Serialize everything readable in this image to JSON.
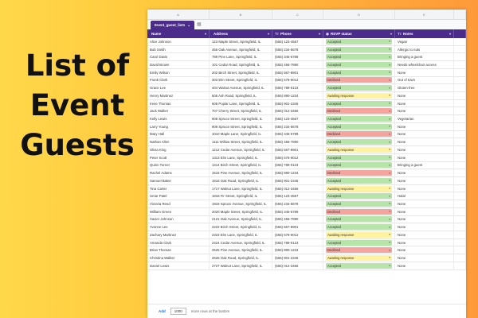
{
  "headline": {
    "line1": "List of",
    "line2": "Event",
    "line3": "Guests"
  },
  "column_letters": [
    "A",
    "B",
    "C",
    "D",
    "E",
    ""
  ],
  "sheet_tab": {
    "label": "Event_guest_list1",
    "menu_glyph": "⌄",
    "icon_glyph": "▦"
  },
  "headers": [
    {
      "icon": "",
      "label": "Name"
    },
    {
      "icon": "",
      "label": "Address"
    },
    {
      "icon": "Tт",
      "label": "Phone"
    },
    {
      "icon": "◉",
      "label": "RSVP status"
    },
    {
      "icon": "Tт",
      "label": "Notes"
    },
    {
      "icon": "",
      "label": ""
    }
  ],
  "status_colors": {
    "Accepted": "#b7e4a8",
    "Declined": "#f5a49e",
    "Awaiting response": "#fff2a0"
  },
  "rows": [
    [
      "Alice Johnson",
      "123 Maple Street, Springfield, IL",
      "(555) 123-4567",
      "Accepted",
      "Vegan"
    ],
    [
      "Bob Smith",
      "456 Oak Avenue, Springfield, IL",
      "(555) 234-5678",
      "Accepted",
      "Allergic to nuts"
    ],
    [
      "Carol Davis",
      "789 Pine Lane, Springfield, IL",
      "(555) 345-6789",
      "Accepted",
      "Bringing a guest"
    ],
    [
      "David Brown",
      "101 Cedar Road, Springfield, IL",
      "(555) 456-7890",
      "Accepted",
      "Needs wheelchair access"
    ],
    [
      "Emily Wilson",
      "202 Birch Street, Springfield, IL",
      "(555) 567-8901",
      "Accepted",
      "None"
    ],
    [
      "Frank Clark",
      "303 Elm Street, Springfield, IL",
      "(555) 678-9012",
      "Declined",
      "Out of town"
    ],
    [
      "Grace Lee",
      "404 Walnut Avenue, Springfield, IL",
      "(555) 789-0123",
      "Accepted",
      "Gluten-free"
    ],
    [
      "Henry Martinez",
      "505 Ash Road, Springfield, IL",
      "(555) 890-1234",
      "Awaiting response",
      "None"
    ],
    [
      "Irene Thomas",
      "606 Poplar Lane, Springfield, IL",
      "(555) 901-2345",
      "Accepted",
      "None"
    ],
    [
      "Jack Walker",
      "707 Cherry Street, Springfield, IL",
      "(555) 012-3456",
      "Declined",
      "None"
    ],
    [
      "Kelly Lewis",
      "808 Spruce Street, Springfield, IL",
      "(555) 123-4567",
      "Accepted",
      "Vegetarian"
    ],
    [
      "Larry Young",
      "909 Spruce Street, Springfield, IL",
      "(555) 234-5678",
      "Accepted",
      "None"
    ],
    [
      "Mary Hall",
      "1010 Maple Lane, Springfield, IL",
      "(555) 345-6789",
      "Declined",
      "None"
    ],
    [
      "Nathan Allen",
      "1111 Willow Street, Springfield, IL",
      "(555) 456-7890",
      "Accepted",
      "None"
    ],
    [
      "Olivia King",
      "1212 Cedar Avenue, Springfield, IL",
      "(555) 567-8901",
      "Awaiting response",
      "None"
    ],
    [
      "Peter Scott",
      "1313 Elm Lane, Springfield, IL",
      "(555) 678-9012",
      "Accepted",
      "None"
    ],
    [
      "Quinn Turner",
      "1414 Birch Street, Springfield, IL",
      "(555) 789-0123",
      "Accepted",
      "Bringing a guest"
    ],
    [
      "Rachel Adams",
      "1515 Pine Avenue, Springfield, IL",
      "(555) 890-1234",
      "Declined",
      "None"
    ],
    [
      "Samuel Baker",
      "1616 Oak Road, Springfield, IL",
      "(555) 901-2345",
      "Accepted",
      "None"
    ],
    [
      "Tina Carter",
      "1717 Walnut Lane, Springfield, IL",
      "(555) 012-3456",
      "Awaiting response",
      "None"
    ],
    [
      "Umar Patel",
      "1818 Fir Street, Springfield, IL",
      "(555) 123-4567",
      "Accepted",
      "Halal"
    ],
    [
      "Victoria Reed",
      "1919 Spruce Avenue, Springfield, IL",
      "(555) 234-5678",
      "Accepted",
      "None"
    ],
    [
      "William Green",
      "2020 Maple Street, Springfield, IL",
      "(555) 345-6789",
      "Declined",
      "None"
    ],
    [
      "Xavier Johnson",
      "2121 Oak Avenue, Springfield, IL",
      "(555) 456-7890",
      "Accepted",
      "None"
    ],
    [
      "Yvonne Lee",
      "2222 Birch Street, Springfield, IL",
      "(555) 567-8901",
      "Accepted",
      "None"
    ],
    [
      "Zachary Martinez",
      "2323 Elm Lane, Springfield, IL",
      "(555) 678-9012",
      "Awaiting response",
      "None"
    ],
    [
      "Amanda Clark",
      "2424 Cedar Avenue, Springfield, IL",
      "(555) 789-0123",
      "Accepted",
      "None"
    ],
    [
      "Brian Thomas",
      "2525 Pine Avenue, Springfield, IL",
      "(555) 890-1234",
      "Declined",
      "None"
    ],
    [
      "Christina Walker",
      "2626 Oak Road, Springfield, IL",
      "(555) 901-2345",
      "Awaiting response",
      "None"
    ],
    [
      "Daniel Lewis",
      "2727 Walnut Lane, Springfield, IL",
      "(555) 012-3456",
      "Accepted",
      "None"
    ]
  ],
  "footer": {
    "add_label": "Add",
    "rows_value": "1000",
    "suffix": "more rows at the bottom"
  }
}
